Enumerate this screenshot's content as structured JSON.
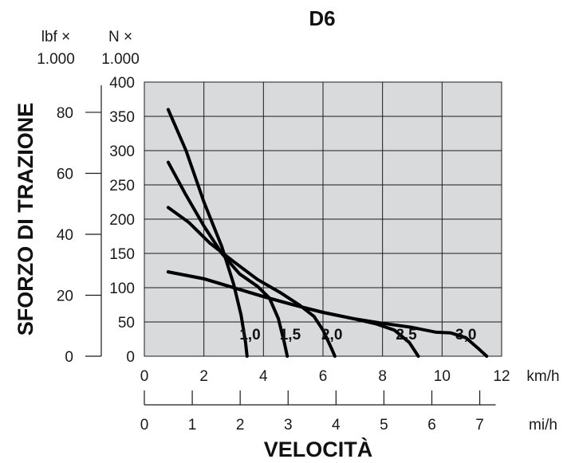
{
  "chart_data": {
    "type": "line",
    "title": "D6",
    "ylabel": "SFORZO DI TRAZIONE",
    "xlabel": "VELOCITÀ",
    "y_units": {
      "lbf": "lbf ×",
      "lbf_scale": "1.000",
      "n": "N ×",
      "n_scale": "1.000"
    },
    "x_units": {
      "kmh": "km/h",
      "mih": "mi/h"
    },
    "ylim_kN": [
      0,
      400
    ],
    "xlim_kmh": [
      0,
      12
    ],
    "yticks_N": [
      "400",
      "350",
      "300",
      "250",
      "200",
      "150",
      "100",
      "50",
      "0"
    ],
    "yticks_lbf": [
      "80",
      "60",
      "40",
      "20",
      "0"
    ],
    "xticks_kmh": [
      "0",
      "2",
      "4",
      "6",
      "8",
      "10",
      "12"
    ],
    "xticks_mih": [
      "0",
      "1",
      "2",
      "3",
      "4",
      "5",
      "6",
      "7"
    ],
    "grid": true,
    "plot_background": "#d9dadc",
    "series": [
      {
        "name": "1,0",
        "points": [
          [
            0.8,
            360
          ],
          [
            1.4,
            300
          ],
          [
            2.0,
            225
          ],
          [
            2.6,
            160
          ],
          [
            3.0,
            105
          ],
          [
            3.25,
            60
          ],
          [
            3.4,
            20
          ],
          [
            3.45,
            0
          ]
        ]
      },
      {
        "name": "1,5",
        "points": [
          [
            0.8,
            283
          ],
          [
            1.4,
            235
          ],
          [
            2.0,
            190
          ],
          [
            2.6,
            150
          ],
          [
            3.2,
            120
          ],
          [
            3.8,
            102
          ],
          [
            4.2,
            85
          ],
          [
            4.5,
            55
          ],
          [
            4.7,
            20
          ],
          [
            4.8,
            0
          ]
        ]
      },
      {
        "name": "2,0",
        "points": [
          [
            0.8,
            217
          ],
          [
            1.5,
            195
          ],
          [
            2.2,
            165
          ],
          [
            3.0,
            138
          ],
          [
            3.8,
            112
          ],
          [
            4.6,
            92
          ],
          [
            5.2,
            75
          ],
          [
            5.7,
            58
          ],
          [
            6.0,
            38
          ],
          [
            6.3,
            10
          ],
          [
            6.4,
            0
          ]
        ]
      },
      {
        "name": "2,5",
        "points": [
          [
            0.8,
            123
          ],
          [
            2.0,
            113
          ],
          [
            3.0,
            100
          ],
          [
            4.0,
            87
          ],
          [
            5.0,
            75
          ],
          [
            6.0,
            64
          ],
          [
            7.0,
            55
          ],
          [
            7.8,
            47
          ],
          [
            8.4,
            38
          ],
          [
            8.9,
            20
          ],
          [
            9.2,
            0
          ]
        ]
      },
      {
        "name": "3,0",
        "points": [
          [
            0.8,
            123
          ],
          [
            2.0,
            113
          ],
          [
            3.0,
            100
          ],
          [
            4.0,
            87
          ],
          [
            5.0,
            75
          ],
          [
            6.0,
            64
          ],
          [
            7.0,
            55
          ],
          [
            8.0,
            48
          ],
          [
            9.0,
            42
          ],
          [
            9.8,
            35
          ],
          [
            10.3,
            34
          ],
          [
            10.8,
            27
          ],
          [
            11.2,
            12
          ],
          [
            11.5,
            0
          ]
        ]
      }
    ],
    "series_label_xy": [
      [
        3.55,
        20
      ],
      [
        4.9,
        20
      ],
      [
        6.3,
        20
      ],
      [
        8.8,
        20
      ],
      [
        10.8,
        20
      ]
    ]
  }
}
